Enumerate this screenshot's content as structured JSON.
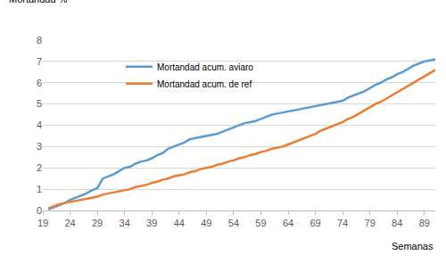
{
  "chart_data": {
    "type": "line",
    "x_label": "Semanas",
    "y_label": "Mortandad %",
    "x": [
      20,
      21,
      22,
      23,
      24,
      25,
      26,
      27,
      28,
      29,
      30,
      31,
      32,
      33,
      34,
      35,
      36,
      37,
      38,
      39,
      40,
      41,
      42,
      43,
      44,
      45,
      46,
      47,
      48,
      49,
      50,
      51,
      52,
      53,
      54,
      55,
      56,
      57,
      58,
      59,
      60,
      61,
      62,
      63,
      64,
      65,
      66,
      67,
      68,
      69,
      70,
      71,
      72,
      73,
      74,
      75,
      76,
      77,
      78,
      79,
      80,
      81,
      82,
      83,
      84,
      85,
      86,
      87,
      88,
      89,
      90,
      91
    ],
    "series": [
      {
        "name": "Mortandad acum. aviaro",
        "color": "#5B9BD5",
        "values": [
          0.05,
          0.15,
          0.25,
          0.35,
          0.5,
          0.6,
          0.7,
          0.8,
          0.95,
          1.05,
          1.5,
          1.6,
          1.7,
          1.85,
          2.0,
          2.05,
          2.2,
          2.3,
          2.35,
          2.45,
          2.6,
          2.7,
          2.9,
          3.0,
          3.1,
          3.2,
          3.35,
          3.4,
          3.45,
          3.5,
          3.55,
          3.6,
          3.7,
          3.8,
          3.9,
          4.0,
          4.1,
          4.15,
          4.2,
          4.3,
          4.4,
          4.5,
          4.55,
          4.6,
          4.65,
          4.7,
          4.75,
          4.8,
          4.85,
          4.9,
          4.95,
          5.0,
          5.05,
          5.1,
          5.15,
          5.3,
          5.4,
          5.5,
          5.6,
          5.75,
          5.9,
          6.0,
          6.15,
          6.25,
          6.4,
          6.5,
          6.65,
          6.8,
          6.9,
          7.0,
          7.05,
          7.1
        ]
      },
      {
        "name": "Mortandad acum. de ref",
        "color": "#ED7D31",
        "values": [
          0.1,
          0.2,
          0.3,
          0.35,
          0.4,
          0.45,
          0.5,
          0.55,
          0.6,
          0.65,
          0.75,
          0.8,
          0.85,
          0.9,
          0.95,
          1.0,
          1.1,
          1.15,
          1.2,
          1.3,
          1.35,
          1.45,
          1.5,
          1.6,
          1.65,
          1.7,
          1.8,
          1.85,
          1.95,
          2.0,
          2.05,
          2.15,
          2.2,
          2.3,
          2.35,
          2.45,
          2.5,
          2.6,
          2.65,
          2.75,
          2.8,
          2.9,
          2.95,
          3.0,
          3.1,
          3.2,
          3.3,
          3.4,
          3.5,
          3.6,
          3.75,
          3.85,
          3.95,
          4.05,
          4.15,
          4.3,
          4.4,
          4.55,
          4.7,
          4.85,
          5.0,
          5.1,
          5.25,
          5.4,
          5.55,
          5.7,
          5.85,
          6.0,
          6.15,
          6.3,
          6.45,
          6.6
        ]
      }
    ],
    "xlim": [
      19,
      91
    ],
    "xticks": [
      19,
      24,
      29,
      34,
      39,
      44,
      49,
      54,
      59,
      64,
      69,
      74,
      79,
      84,
      89
    ],
    "ylim": [
      0,
      8
    ],
    "yticks": [
      0,
      1,
      2,
      3,
      4,
      5,
      6,
      7,
      8
    ],
    "grid": true,
    "legend": "upper left"
  }
}
